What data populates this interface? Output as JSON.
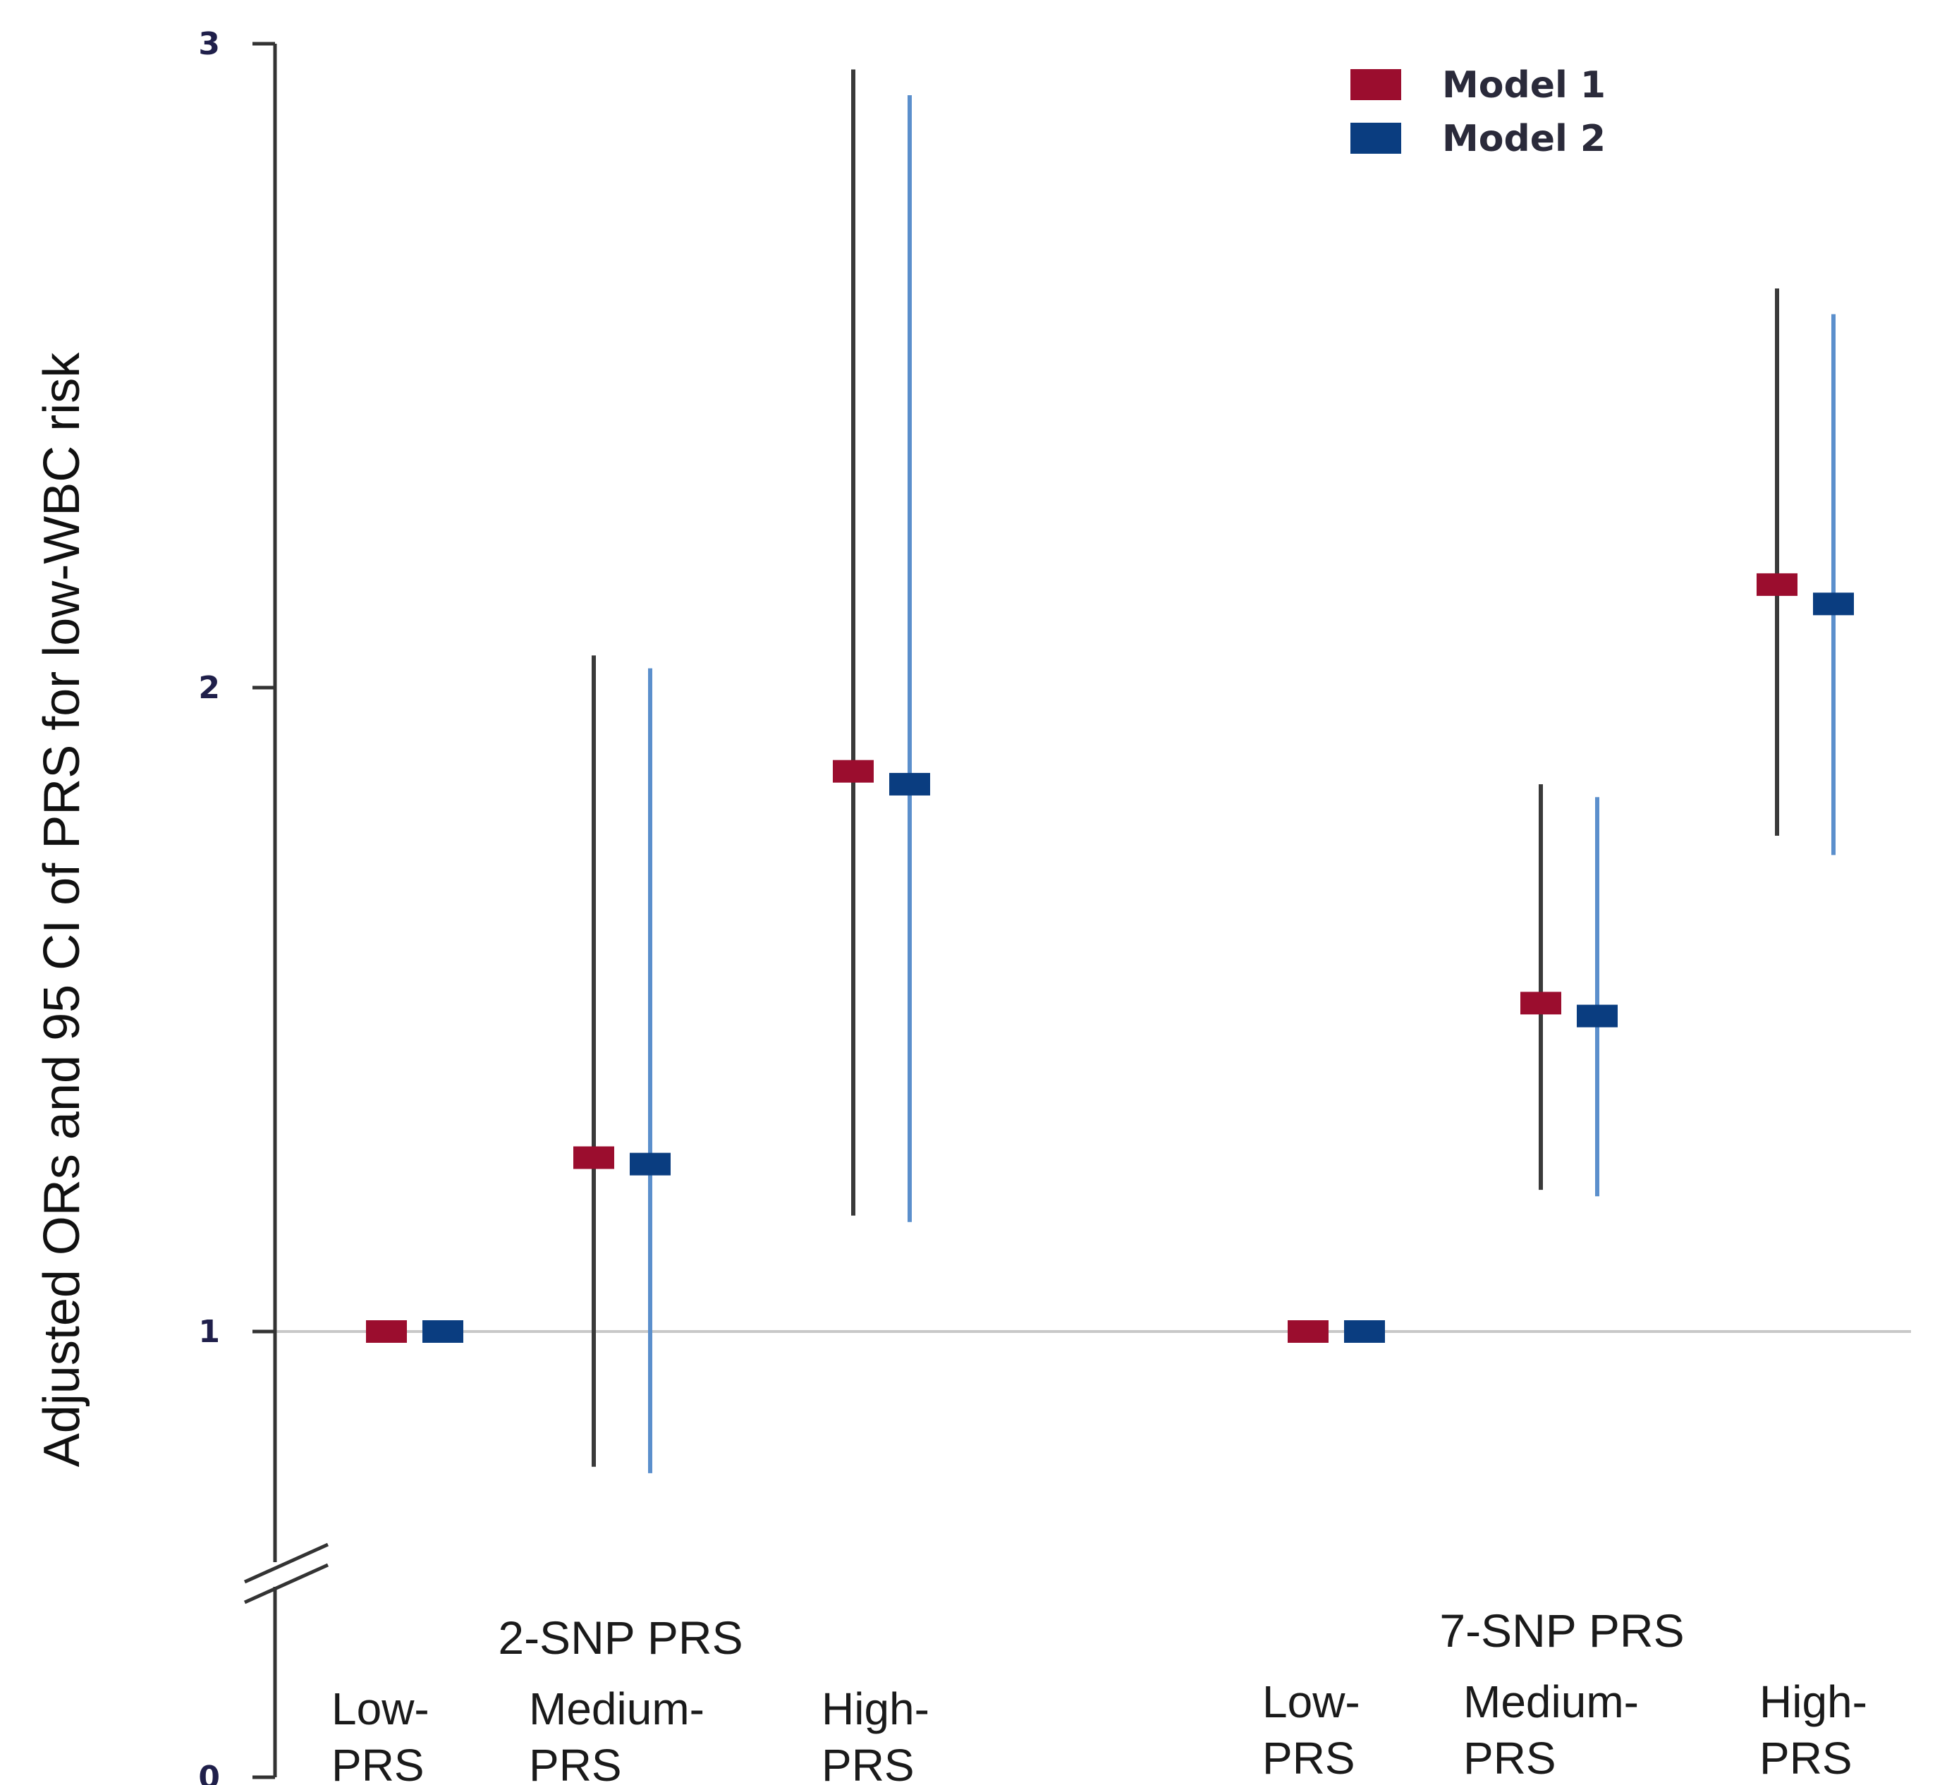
{
  "chart_data": {
    "type": "scatter",
    "subtype": "forest-plot",
    "ylabel": "Adjusted ORs and 95 CI of PRS for low-WBC risk",
    "ylim": [
      0,
      3
    ],
    "yticks": [
      "0",
      "1",
      "2",
      "3"
    ],
    "axis_break": true,
    "reference_line": 1,
    "legend_position": "top-right",
    "series": [
      {
        "name": "Model 1",
        "marker_color": "#9b0d2e",
        "ci_color": "#3a3a3a"
      },
      {
        "name": "Model 2",
        "marker_color": "#0a3d80",
        "ci_color": "#5b8fcc"
      }
    ],
    "groups": [
      {
        "label": "2-SNP PRS",
        "categories": [
          {
            "label_line1": "Low-",
            "label_line2": "PRS",
            "model1": {
              "or": 1.0,
              "lower": 1.0,
              "upper": 1.0
            },
            "model2": {
              "or": 1.0,
              "lower": 1.0,
              "upper": 1.0
            }
          },
          {
            "label_line1": "Medium-",
            "label_line2": "PRS",
            "model1": {
              "or": 1.27,
              "lower": 0.79,
              "upper": 2.05
            },
            "model2": {
              "or": 1.26,
              "lower": 0.78,
              "upper": 2.03
            }
          },
          {
            "label_line1": "High-",
            "label_line2": "PRS",
            "model1": {
              "or": 1.87,
              "lower": 1.18,
              "upper": 2.96
            },
            "model2": {
              "or": 1.85,
              "lower": 1.17,
              "upper": 2.92
            }
          }
        ]
      },
      {
        "label": "7-SNP PRS",
        "categories": [
          {
            "label_line1": "Low-",
            "label_line2": "PRS",
            "model1": {
              "or": 1.0,
              "lower": 1.0,
              "upper": 1.0
            },
            "model2": {
              "or": 1.0,
              "lower": 1.0,
              "upper": 1.0
            }
          },
          {
            "label_line1": "Medium-",
            "label_line2": "PRS",
            "model1": {
              "or": 1.51,
              "lower": 1.22,
              "upper": 1.85
            },
            "model2": {
              "or": 1.49,
              "lower": 1.21,
              "upper": 1.83
            }
          },
          {
            "label_line1": "High-",
            "label_line2": "PRS",
            "model1": {
              "or": 2.16,
              "lower": 1.77,
              "upper": 2.62
            },
            "model2": {
              "or": 2.13,
              "lower": 1.74,
              "upper": 2.58
            }
          }
        ]
      }
    ]
  }
}
